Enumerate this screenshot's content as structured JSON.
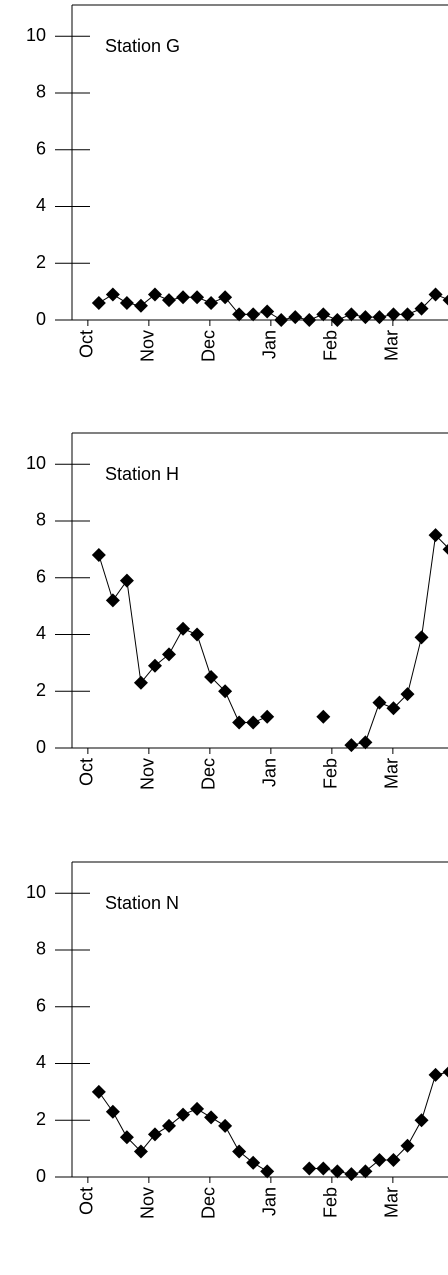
{
  "chart_data": [
    {
      "type": "line",
      "title": "Station G",
      "color": "#000000",
      "x": [
        0.18,
        0.41,
        0.64,
        0.87,
        1.1,
        1.33,
        1.56,
        1.79,
        2.02,
        2.25,
        2.48,
        2.71,
        2.94,
        3.17,
        3.4,
        3.63,
        3.86,
        4.09,
        4.32,
        4.55,
        4.78,
        5.01,
        5.24,
        5.47,
        5.7,
        5.93
      ],
      "values": [
        0.6,
        0.9,
        0.6,
        0.5,
        0.9,
        0.7,
        0.8,
        0.8,
        0.6,
        0.8,
        0.2,
        0.2,
        0.3,
        0.0,
        0.1,
        0.0,
        0.2,
        0.0,
        0.2,
        0.1,
        0.1,
        0.2,
        0.2,
        0.4,
        0.9,
        0.7
      ],
      "xlim": [
        -0.26,
        6.5
      ],
      "xticks": [
        {
          "value": 0,
          "label": "Oct"
        },
        {
          "value": 1,
          "label": "Nov"
        },
        {
          "value": 2,
          "label": "Dec"
        },
        {
          "value": 3,
          "label": "Jan"
        },
        {
          "value": 4,
          "label": "Feb"
        },
        {
          "value": 5,
          "label": "Mar"
        }
      ],
      "ylim": [
        0,
        11.1
      ],
      "yticks": [
        0,
        2,
        4,
        6,
        8,
        10
      ]
    },
    {
      "type": "line",
      "title": "Station H",
      "color": "#000000",
      "x": [
        0.18,
        0.41,
        0.64,
        0.87,
        1.1,
        1.33,
        1.56,
        1.79,
        2.02,
        2.25,
        2.48,
        2.71,
        2.94,
        3.17,
        3.4,
        3.63,
        3.86,
        4.09,
        4.32,
        4.55,
        4.78,
        5.01,
        5.24,
        5.47,
        5.7,
        5.93
      ],
      "values": [
        6.8,
        5.2,
        5.9,
        2.3,
        2.9,
        3.3,
        4.2,
        4.0,
        2.5,
        2.0,
        0.9,
        0.9,
        1.1,
        null,
        null,
        null,
        1.1,
        null,
        0.1,
        0.2,
        1.6,
        1.4,
        1.9,
        3.9,
        7.5,
        7.0
      ],
      "xlim": [
        -0.26,
        6.5
      ],
      "xticks": [
        {
          "value": 0,
          "label": "Oct"
        },
        {
          "value": 1,
          "label": "Nov"
        },
        {
          "value": 2,
          "label": "Dec"
        },
        {
          "value": 3,
          "label": "Jan"
        },
        {
          "value": 4,
          "label": "Feb"
        },
        {
          "value": 5,
          "label": "Mar"
        }
      ],
      "ylim": [
        0,
        11.1
      ],
      "yticks": [
        0,
        2,
        4,
        6,
        8,
        10
      ]
    },
    {
      "type": "line",
      "title": "Station N",
      "color": "#000000",
      "x": [
        0.18,
        0.41,
        0.64,
        0.87,
        1.1,
        1.33,
        1.56,
        1.79,
        2.02,
        2.25,
        2.48,
        2.71,
        2.94,
        3.17,
        3.4,
        3.63,
        3.86,
        4.09,
        4.32,
        4.55,
        4.78,
        5.01,
        5.24,
        5.47,
        5.7,
        5.93
      ],
      "values": [
        3.0,
        2.3,
        1.4,
        0.9,
        1.5,
        1.8,
        2.2,
        2.4,
        2.1,
        1.8,
        0.9,
        0.5,
        0.2,
        null,
        null,
        0.3,
        0.3,
        0.2,
        0.1,
        0.2,
        0.6,
        0.6,
        1.1,
        2.0,
        3.6,
        3.7
      ],
      "xlim": [
        -0.26,
        6.5
      ],
      "xticks": [
        {
          "value": 0,
          "label": "Oct"
        },
        {
          "value": 1,
          "label": "Nov"
        },
        {
          "value": 2,
          "label": "Dec"
        },
        {
          "value": 3,
          "label": "Jan"
        },
        {
          "value": 4,
          "label": "Feb"
        },
        {
          "value": 5,
          "label": "Mar"
        }
      ],
      "ylim": [
        0,
        11.1
      ],
      "yticks": [
        0,
        2,
        4,
        6,
        8,
        10
      ]
    }
  ]
}
